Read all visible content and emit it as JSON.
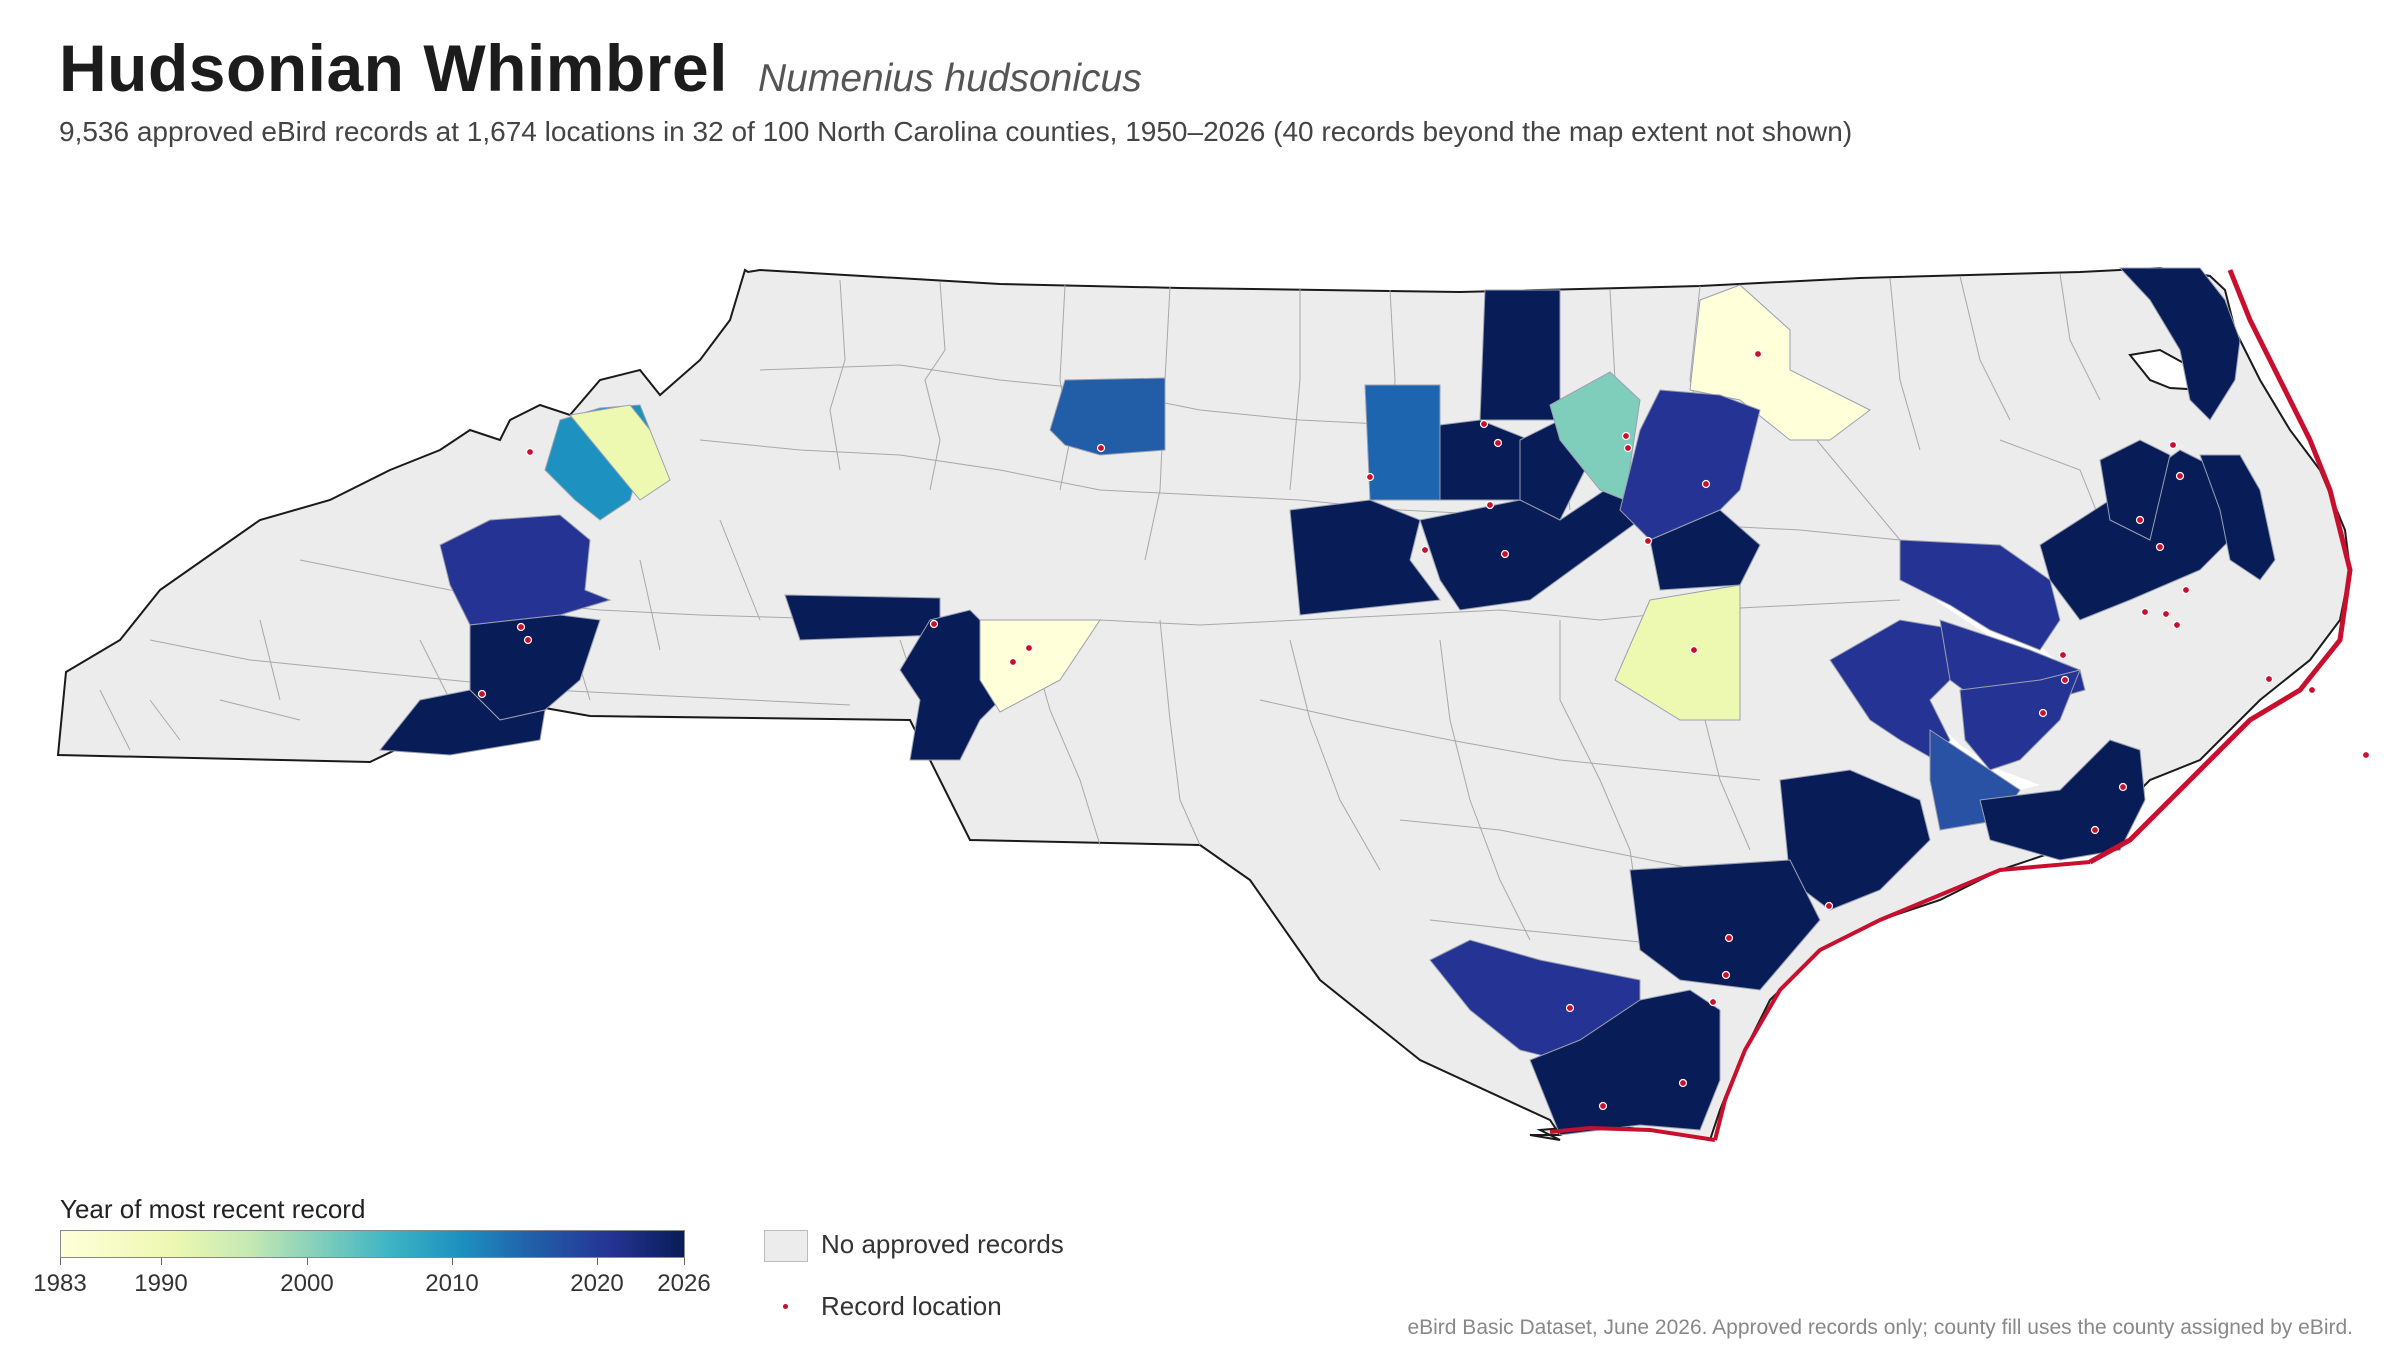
{
  "header": {
    "common_name": "Hudsonian Whimbrel",
    "scientific_name": "Numenius hudsonicus",
    "subtitle": "9,536 approved eBird records at 1,674 locations in 32 of 100 North Carolina counties, 1950–2026 (40 records beyond the map extent not shown)"
  },
  "legend": {
    "colorbar_title": "Year of most recent record",
    "min_year": 1983,
    "max_year": 2026,
    "ticks": [
      "1983",
      "1990",
      "2000",
      "2010",
      "2020",
      "2026"
    ],
    "no_records_label": "No approved records",
    "record_location_label": "Record location",
    "colors": {
      "no_records": "#ececec",
      "record_dot": "#c8102e",
      "ramp": [
        "#ffffd9",
        "#edf8b1",
        "#c7e9b4",
        "#7fcdbb",
        "#41b6c4",
        "#1d91c0",
        "#225ea8",
        "#253494",
        "#081d58"
      ]
    }
  },
  "footer": {
    "caption": "eBird Basic Dataset, June 2026. Approved records only; county fill uses the county assigned by eBird."
  }
}
